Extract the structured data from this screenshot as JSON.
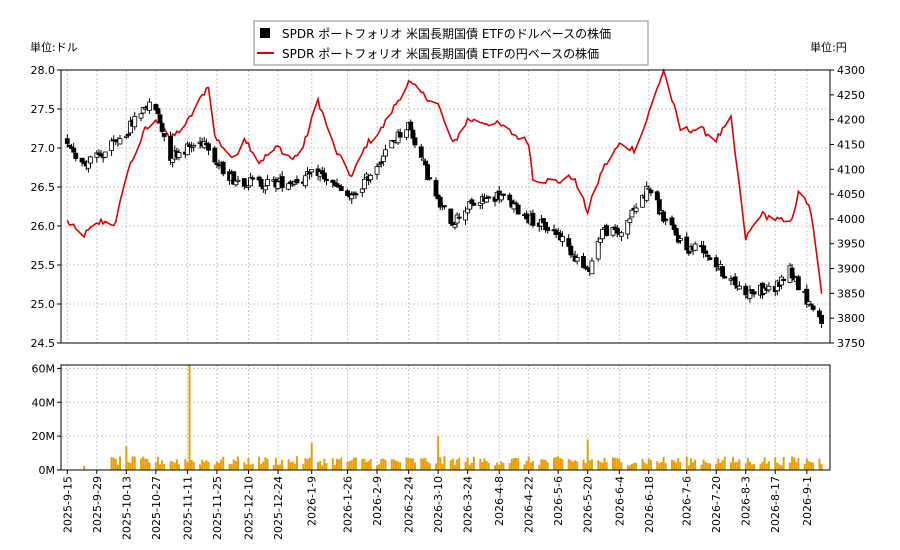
{
  "header": {
    "left_unit": "単位:ドル",
    "right_unit": "単位:円"
  },
  "legend": [
    {
      "label": "SPDR ポートフォリオ 米国長期国債 ETFのドルベースの株価",
      "color": "#000000",
      "marker": "square"
    },
    {
      "label": "SPDR ポートフォリオ 米国長期国債 ETFの円ベースの株価",
      "color": "#dd0000",
      "marker": "line"
    }
  ],
  "chart_data": [
    {
      "type": "candlestick+line",
      "y_left_label": "単位:ドル",
      "y_right_label": "単位:円",
      "y_left_lim": [
        24.5,
        28.0
      ],
      "y_right_lim": [
        3750,
        4300
      ],
      "y_left_ticks": [
        "24.5",
        "25.0",
        "25.5",
        "26.0",
        "26.5",
        "27.0",
        "27.5",
        "28.0"
      ],
      "y_right_ticks": [
        "3750",
        "3800",
        "3850",
        "3900",
        "3950",
        "4000",
        "4050",
        "4100",
        "4150",
        "4200",
        "4250",
        "4300"
      ],
      "grid": true,
      "legend_position": "top-center",
      "usd_close_anchors": [
        {
          "date": "2025-09-15",
          "value": 27.1
        },
        {
          "date": "2025-09-22",
          "value": 26.8
        },
        {
          "date": "2025-10-01",
          "value": 26.9
        },
        {
          "date": "2025-10-13",
          "value": 27.2
        },
        {
          "date": "2025-10-22",
          "value": 27.55
        },
        {
          "date": "2025-10-27",
          "value": 27.5
        },
        {
          "date": "2025-11-03",
          "value": 26.9
        },
        {
          "date": "2025-11-11",
          "value": 27.0
        },
        {
          "date": "2025-11-20",
          "value": 27.1
        },
        {
          "date": "2025-11-25",
          "value": 26.8
        },
        {
          "date": "2025-12-03",
          "value": 26.6
        },
        {
          "date": "2025-12-15",
          "value": 26.55
        },
        {
          "date": "2025-12-24",
          "value": 26.55
        },
        {
          "date": "2026-01-05",
          "value": 26.6
        },
        {
          "date": "2026-01-12",
          "value": 26.7
        },
        {
          "date": "2026-01-20",
          "value": 26.5
        },
        {
          "date": "2026-01-28",
          "value": 26.35
        },
        {
          "date": "2026-02-04",
          "value": 26.6
        },
        {
          "date": "2026-02-17",
          "value": 27.1
        },
        {
          "date": "2026-02-24",
          "value": 27.3
        },
        {
          "date": "2026-03-03",
          "value": 26.8
        },
        {
          "date": "2026-03-10",
          "value": 26.3
        },
        {
          "date": "2026-03-17",
          "value": 26.05
        },
        {
          "date": "2026-03-24",
          "value": 26.25
        },
        {
          "date": "2026-04-08",
          "value": 26.4
        },
        {
          "date": "2026-04-22",
          "value": 26.1
        },
        {
          "date": "2026-05-06",
          "value": 25.9
        },
        {
          "date": "2026-05-20",
          "value": 25.4
        },
        {
          "date": "2026-05-27",
          "value": 25.95
        },
        {
          "date": "2026-06-04",
          "value": 25.9
        },
        {
          "date": "2026-06-18",
          "value": 26.5
        },
        {
          "date": "2026-06-25",
          "value": 26.1
        },
        {
          "date": "2026-07-06",
          "value": 25.7
        },
        {
          "date": "2026-07-13",
          "value": 25.75
        },
        {
          "date": "2026-07-20",
          "value": 25.5
        },
        {
          "date": "2026-07-27",
          "value": 25.3
        },
        {
          "date": "2026-08-03",
          "value": 25.15
        },
        {
          "date": "2026-08-17",
          "value": 25.2
        },
        {
          "date": "2026-08-24",
          "value": 25.45
        },
        {
          "date": "2026-08-31",
          "value": 25.1
        },
        {
          "date": "2026-09-08",
          "value": 24.8
        }
      ],
      "jpy_close_anchors": [
        {
          "date": "2025-09-15",
          "value": 3995
        },
        {
          "date": "2025-09-22",
          "value": 3965
        },
        {
          "date": "2025-10-01",
          "value": 3995
        },
        {
          "date": "2025-10-08",
          "value": 3990
        },
        {
          "date": "2025-10-13",
          "value": 4090
        },
        {
          "date": "2025-10-22",
          "value": 4180
        },
        {
          "date": "2025-10-29",
          "value": 4200
        },
        {
          "date": "2025-11-03",
          "value": 4160
        },
        {
          "date": "2025-11-11",
          "value": 4195
        },
        {
          "date": "2025-11-17",
          "value": 4240
        },
        {
          "date": "2025-11-21",
          "value": 4270
        },
        {
          "date": "2025-11-24",
          "value": 4165
        },
        {
          "date": "2025-12-03",
          "value": 4120
        },
        {
          "date": "2025-12-08",
          "value": 4165
        },
        {
          "date": "2025-12-15",
          "value": 4115
        },
        {
          "date": "2025-12-24",
          "value": 4145
        },
        {
          "date": "2025-12-31",
          "value": 4120
        },
        {
          "date": "2026-01-05",
          "value": 4145
        },
        {
          "date": "2026-01-12",
          "value": 4240
        },
        {
          "date": "2026-01-20",
          "value": 4140
        },
        {
          "date": "2026-01-28",
          "value": 4085
        },
        {
          "date": "2026-02-04",
          "value": 4150
        },
        {
          "date": "2026-02-11",
          "value": 4180
        },
        {
          "date": "2026-02-17",
          "value": 4225
        },
        {
          "date": "2026-02-24",
          "value": 4275
        },
        {
          "date": "2026-03-03",
          "value": 4250
        },
        {
          "date": "2026-03-10",
          "value": 4230
        },
        {
          "date": "2026-03-17",
          "value": 4150
        },
        {
          "date": "2026-03-24",
          "value": 4200
        },
        {
          "date": "2026-04-08",
          "value": 4190
        },
        {
          "date": "2026-04-15",
          "value": 4170
        },
        {
          "date": "2026-04-22",
          "value": 4155
        },
        {
          "date": "2026-04-24",
          "value": 4080
        },
        {
          "date": "2026-05-06",
          "value": 4075
        },
        {
          "date": "2026-05-13",
          "value": 4085
        },
        {
          "date": "2026-05-20",
          "value": 4015
        },
        {
          "date": "2026-05-27",
          "value": 4100
        },
        {
          "date": "2026-06-04",
          "value": 4150
        },
        {
          "date": "2026-06-11",
          "value": 4140
        },
        {
          "date": "2026-06-15",
          "value": 4175
        },
        {
          "date": "2026-06-25",
          "value": 4300
        },
        {
          "date": "2026-07-03",
          "value": 4180
        },
        {
          "date": "2026-07-13",
          "value": 4180
        },
        {
          "date": "2026-07-20",
          "value": 4160
        },
        {
          "date": "2026-07-27",
          "value": 4200
        },
        {
          "date": "2026-08-03",
          "value": 3960
        },
        {
          "date": "2026-08-10",
          "value": 4010
        },
        {
          "date": "2026-08-17",
          "value": 4000
        },
        {
          "date": "2026-08-24",
          "value": 3990
        },
        {
          "date": "2026-08-28",
          "value": 4050
        },
        {
          "date": "2026-09-02",
          "value": 4030
        },
        {
          "date": "2026-09-05",
          "value": 3955
        },
        {
          "date": "2026-09-09",
          "value": 3810
        },
        {
          "date": "2026-09-11",
          "value": 3770
        }
      ],
      "volume_label_ticks": [
        "0M",
        "20M",
        "40M",
        "60M"
      ],
      "volume_lim": [
        0,
        62000000
      ],
      "volume_notable": [
        {
          "date": "2025-11-12",
          "value": 62000000
        },
        {
          "date": "2026-03-10",
          "value": 20000000
        },
        {
          "date": "2026-01-09",
          "value": 16000000
        },
        {
          "date": "2026-05-20",
          "value": 18000000
        },
        {
          "date": "2025-10-13",
          "value": 14000000
        }
      ],
      "volume_typical": 6000000,
      "volume_color": "#e8a000",
      "x_tick_labels": [
        "2025-9-15",
        "2025-9-29",
        "2025-10-13",
        "2025-10-27",
        "2025-11-11",
        "2025-11-25",
        "2025-12-10",
        "2025-12-24",
        "2026-1-9",
        "2026-1-26",
        "2026-2-9",
        "2026-2-24",
        "2026-3-10",
        "2026-3-24",
        "2026-4-8",
        "2026-4-22",
        "2026-5-6",
        "2026-5-20",
        "2026-6-4",
        "2026-6-18",
        "2026-7-6",
        "2026-7-20",
        "2026-8-3",
        "2026-8-17",
        "2026-9-1"
      ],
      "x_tick_dates": [
        "2025-09-15",
        "2025-09-29",
        "2025-10-13",
        "2025-10-27",
        "2025-11-11",
        "2025-11-25",
        "2025-12-10",
        "2025-12-24",
        "2026-01-09",
        "2026-01-26",
        "2026-02-09",
        "2026-02-24",
        "2026-03-10",
        "2026-03-24",
        "2026-04-08",
        "2026-04-22",
        "2026-05-06",
        "2026-05-20",
        "2026-06-04",
        "2026-06-18",
        "2026-07-06",
        "2026-07-20",
        "2026-08-03",
        "2026-08-17",
        "2026-09-01"
      ],
      "x_range": [
        "2025-09-12",
        "2026-09-12"
      ]
    }
  ]
}
